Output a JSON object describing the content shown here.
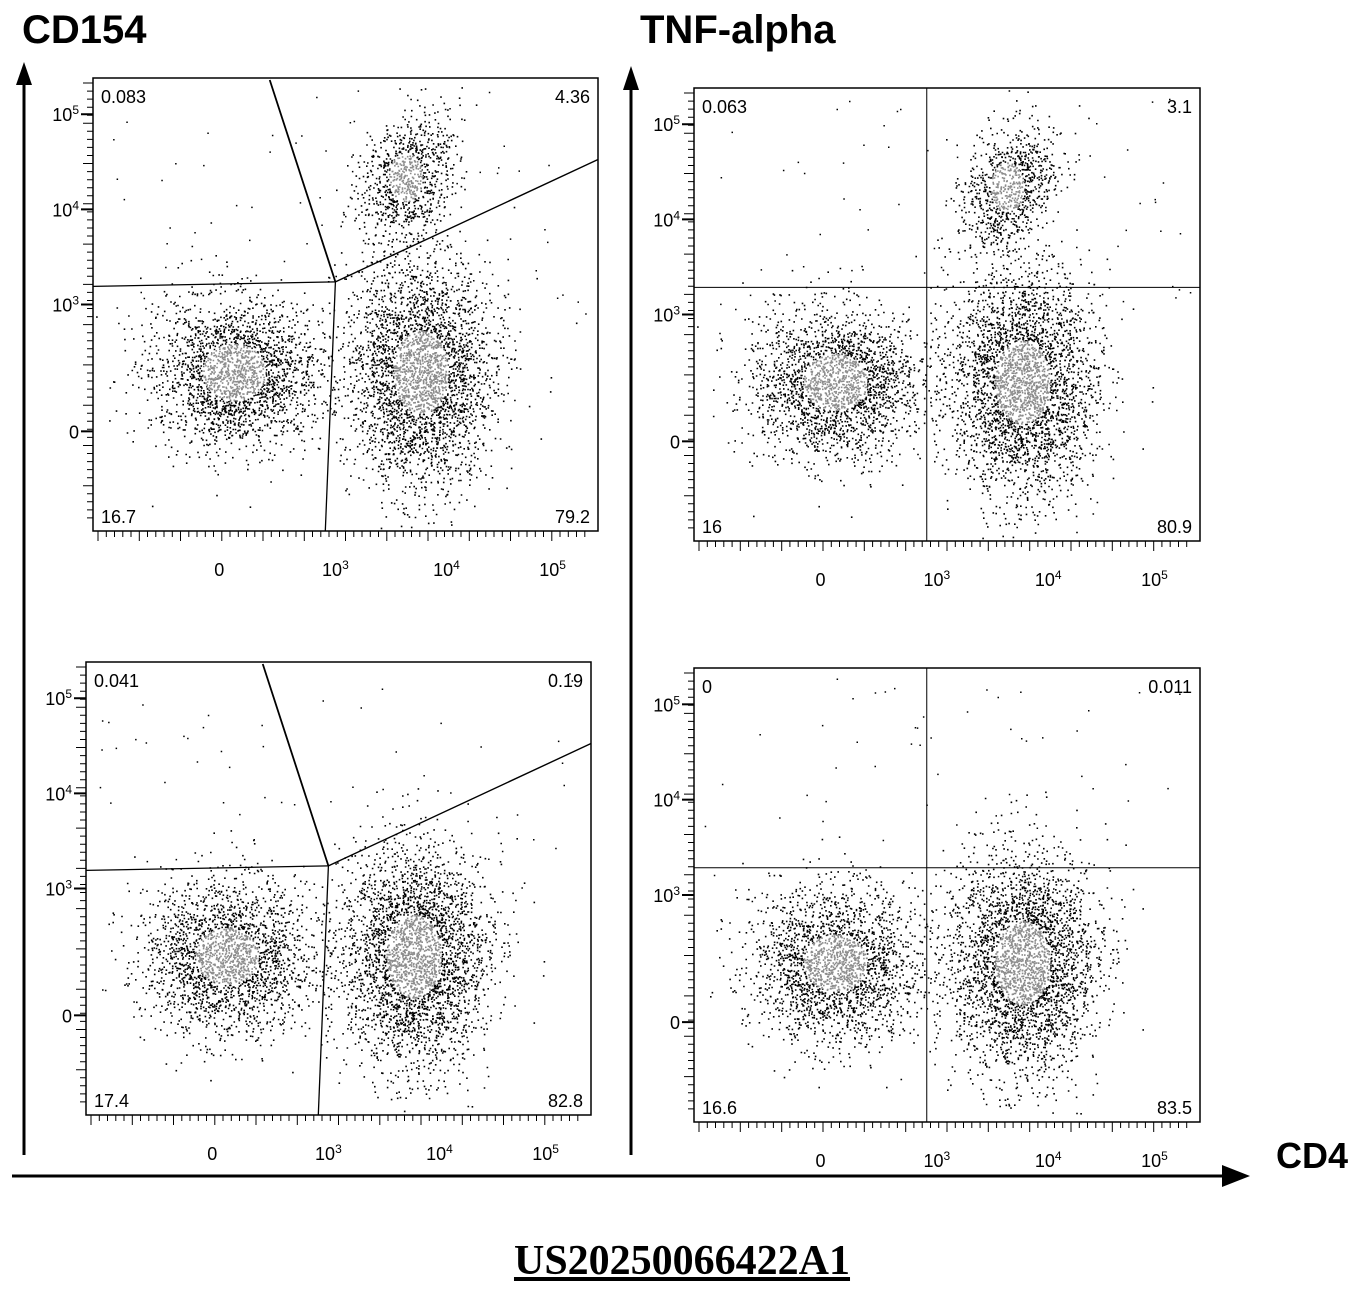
{
  "columns": [
    {
      "title": "CD154"
    },
    {
      "title": "TNF-alpha"
    }
  ],
  "x_axis_label": "CD4",
  "footer": "US20250066422A1",
  "chart_data": [
    {
      "type": "scatter",
      "column": "CD154",
      "row": 1,
      "gate": "angled",
      "quadrants": {
        "ul": "0.083",
        "ur": "4.36",
        "ll": "16.7",
        "lr": "79.2"
      },
      "x_ticks": [
        "0",
        "10^3",
        "10^4",
        "10^5"
      ],
      "y_ticks": [
        "10^5",
        "10^4",
        "10^3",
        "0"
      ],
      "populations": [
        {
          "x": 0.05,
          "y": 0.4
        },
        {
          "x": 0.55,
          "y": 0.5
        },
        {
          "x": 0.7,
          "y": 0.85
        }
      ]
    },
    {
      "type": "scatter",
      "column": "TNF-alpha",
      "row": 1,
      "gate": "quadrant",
      "quadrants": {
        "ul": "0.063",
        "ur": "3.1",
        "ll": "16",
        "lr": "80.9"
      },
      "x_ticks": [
        "0",
        "10^3",
        "10^4",
        "10^5"
      ],
      "y_ticks": [
        "10^5",
        "10^4",
        "10^3",
        "0"
      ],
      "populations": [
        {
          "x": 0.05,
          "y": 0.4
        },
        {
          "x": 0.6,
          "y": 0.45
        },
        {
          "x": 0.65,
          "y": 0.78
        }
      ]
    },
    {
      "type": "scatter",
      "column": "CD154",
      "row": 2,
      "gate": "angled",
      "quadrants": {
        "ul": "0.041",
        "ur": "0.19",
        "ll": "17.4",
        "lr": "82.8"
      },
      "x_ticks": [
        "0",
        "10^3",
        "10^4",
        "10^5"
      ],
      "y_ticks": [
        "10^5",
        "10^4",
        "10^3",
        "0"
      ],
      "populations": [
        {
          "x": 0.05,
          "y": 0.4
        },
        {
          "x": 0.55,
          "y": 0.48
        }
      ]
    },
    {
      "type": "scatter",
      "column": "TNF-alpha",
      "row": 2,
      "gate": "quadrant",
      "quadrants": {
        "ul": "0",
        "ur": "0.011",
        "ll": "16.6",
        "lr": "83.5"
      },
      "x_ticks": [
        "0",
        "10^3",
        "10^4",
        "10^5"
      ],
      "y_ticks": [
        "10^5",
        "10^4",
        "10^3",
        "0"
      ],
      "populations": [
        {
          "x": 0.05,
          "y": 0.4
        },
        {
          "x": 0.6,
          "y": 0.42
        }
      ]
    }
  ]
}
